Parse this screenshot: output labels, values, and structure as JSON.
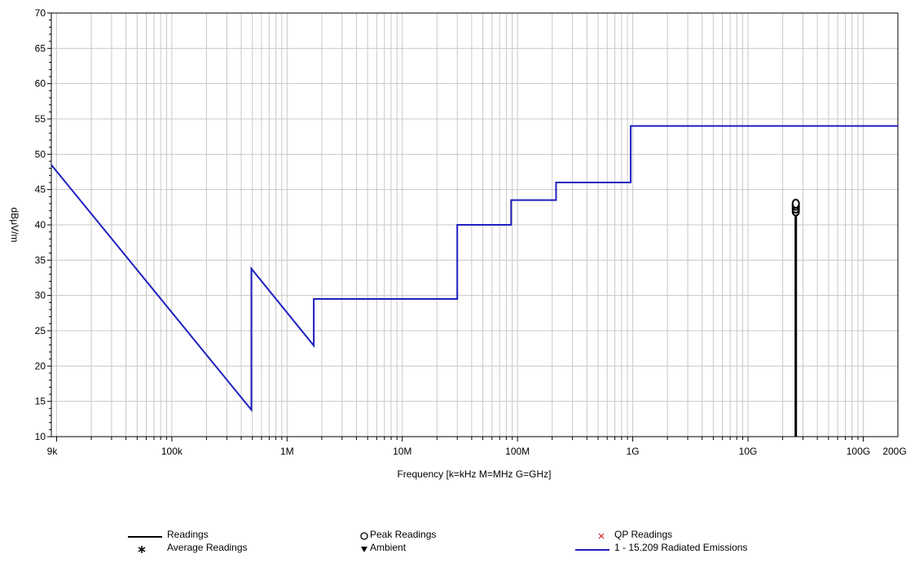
{
  "chart_data": {
    "type": "line",
    "title": "",
    "xlabel": "Frequency [k=kHz M=MHz G=GHz]",
    "ylabel": "dBμV/m",
    "xscale": "log",
    "xlim": [
      9000,
      200000000000
    ],
    "ylim": [
      10,
      70
    ],
    "y_ticks": [
      10,
      15,
      20,
      25,
      30,
      35,
      40,
      45,
      50,
      55,
      60,
      65,
      70
    ],
    "x_tick_labels": [
      {
        "value": 9000,
        "label": "9k"
      },
      {
        "value": 100000,
        "label": "100k"
      },
      {
        "value": 1000000,
        "label": "1M"
      },
      {
        "value": 10000000,
        "label": "10M"
      },
      {
        "value": 100000000,
        "label": "100M"
      },
      {
        "value": 1000000000,
        "label": "1G"
      },
      {
        "value": 10000000000,
        "label": "10G"
      },
      {
        "value": 100000000000,
        "label": "100G"
      },
      {
        "value": 200000000000,
        "label": "200G"
      }
    ],
    "grid": true,
    "series": [
      {
        "name": "1 - 15.209 Radiated Emissions",
        "color": "#1f1fbf",
        "points": [
          [
            9000,
            48.5
          ],
          [
            490000,
            13.8
          ],
          [
            490000,
            33.8
          ],
          [
            1705000,
            22.9
          ],
          [
            1705000,
            29.5
          ],
          [
            30000000,
            29.5
          ],
          [
            30000000,
            40.0
          ],
          [
            88000000,
            40.0
          ],
          [
            88000000,
            43.5
          ],
          [
            216000000,
            43.5
          ],
          [
            216000000,
            46.0
          ],
          [
            960000000,
            46.0
          ],
          [
            960000000,
            54.0
          ],
          [
            200000000000,
            54.0
          ]
        ]
      },
      {
        "name": "Readings",
        "color": "#000000",
        "points": [
          [
            26000000000,
            10
          ],
          [
            26000000000,
            42.5
          ]
        ]
      },
      {
        "name": "Peak Readings",
        "color": "#000000",
        "marker": "circle",
        "points": [
          [
            26000000000,
            41.9
          ],
          [
            26000000000,
            42.3
          ],
          [
            26000000000,
            42.7
          ],
          [
            26000000000,
            43.0
          ]
        ]
      }
    ],
    "legend": {
      "placement": "bottom",
      "items": [
        {
          "label": "Readings",
          "symbol": "line",
          "color": "#000000"
        },
        {
          "label": "Average Readings",
          "symbol": "asterisk",
          "color": "#000000"
        },
        {
          "label": "Peak Readings",
          "symbol": "circle",
          "color": "#000000"
        },
        {
          "label": "Ambient",
          "symbol": "triangle-down",
          "color": "#000000"
        },
        {
          "label": "QP Readings",
          "symbol": "x",
          "color": "#d02020"
        },
        {
          "label": "1 - 15.209 Radiated Emissions",
          "symbol": "line",
          "color": "#1f1fbf"
        }
      ]
    }
  }
}
